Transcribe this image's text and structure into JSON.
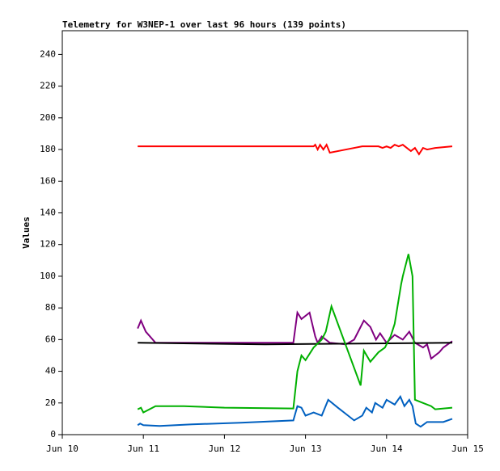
{
  "chart_data": {
    "type": "line",
    "title": "Telemetry for W3NEP-1 over last 96 hours (139 points)",
    "y_label": "Values",
    "xlim": [
      10,
      15
    ],
    "xticks": [
      {
        "value": 10,
        "label": "Jun 10"
      },
      {
        "value": 11,
        "label": "Jun 11"
      },
      {
        "value": 12,
        "label": "Jun 12"
      },
      {
        "value": 13,
        "label": "Jun 13"
      },
      {
        "value": 14,
        "label": "Jun 14"
      },
      {
        "value": 15,
        "label": "Jun 15"
      }
    ],
    "ylim": [
      0,
      255
    ],
    "yticks": [
      0,
      20,
      40,
      60,
      80,
      100,
      120,
      140,
      160,
      180,
      200,
      220,
      240
    ],
    "series": [
      {
        "color": "#ff0000",
        "x": [
          10.93,
          12.1,
          13.1,
          13.12,
          13.15,
          13.18,
          13.22,
          13.26,
          13.3,
          13.5,
          13.7,
          13.9,
          13.95,
          14.0,
          14.05,
          14.1,
          14.15,
          14.2,
          14.25,
          14.3,
          14.35,
          14.4,
          14.45,
          14.5,
          14.6,
          14.81
        ],
        "values": [
          182,
          182,
          182,
          183,
          180,
          183,
          180,
          183,
          178,
          180,
          182,
          182,
          181,
          182,
          181,
          183,
          182,
          183,
          181,
          179,
          181,
          177,
          181,
          180,
          181,
          182
        ]
      },
      {
        "color": "#800080",
        "x": [
          10.93,
          10.97,
          11.03,
          11.15,
          12.0,
          12.85,
          12.9,
          12.95,
          13.05,
          13.12,
          13.15,
          13.2,
          13.3,
          13.5,
          13.6,
          13.72,
          13.8,
          13.87,
          13.92,
          14.0,
          14.1,
          14.2,
          14.28,
          14.35,
          14.45,
          14.5,
          14.55,
          14.65,
          14.7,
          14.81
        ],
        "values": [
          67,
          72,
          65,
          58,
          58,
          58,
          77,
          73,
          77,
          62,
          58,
          62,
          58,
          57,
          60,
          72,
          68,
          60,
          64,
          58,
          63,
          60,
          65,
          58,
          55,
          57,
          48,
          52,
          55,
          59
        ]
      },
      {
        "color": "#000000",
        "x": [
          10.93,
          12.5,
          14.81
        ],
        "values": [
          58,
          57,
          58
        ]
      },
      {
        "color": "#00b000",
        "x": [
          10.93,
          10.97,
          11.0,
          11.15,
          11.5,
          12.0,
          12.85,
          12.9,
          12.95,
          13.0,
          13.1,
          13.2,
          13.25,
          13.32,
          13.68,
          13.72,
          13.8,
          13.9,
          13.98,
          14.05,
          14.1,
          14.18,
          14.2,
          14.27,
          14.32,
          14.35,
          14.45,
          14.55,
          14.6,
          14.81
        ],
        "values": [
          16,
          17,
          14,
          18,
          18,
          17,
          16.5,
          40,
          50,
          47,
          55,
          60,
          65,
          81,
          31,
          53,
          46,
          52,
          55,
          62,
          70,
          95,
          100,
          114,
          100,
          22,
          20,
          18,
          16,
          17
        ]
      },
      {
        "color": "#0060c0",
        "x": [
          10.93,
          10.96,
          11.0,
          11.2,
          11.6,
          12.2,
          12.85,
          12.9,
          12.95,
          13.0,
          13.1,
          13.2,
          13.28,
          13.4,
          13.5,
          13.6,
          13.7,
          13.75,
          13.82,
          13.86,
          13.95,
          14.0,
          14.1,
          14.17,
          14.22,
          14.28,
          14.32,
          14.36,
          14.42,
          14.5,
          14.7,
          14.81
        ],
        "values": [
          6,
          7,
          6,
          5.5,
          6.5,
          7.5,
          9,
          18,
          17,
          12,
          14,
          12,
          22,
          17,
          13,
          9,
          12,
          17,
          14,
          20,
          17,
          22,
          19,
          24,
          18,
          22,
          18,
          7,
          5,
          8,
          8,
          10
        ]
      }
    ]
  }
}
